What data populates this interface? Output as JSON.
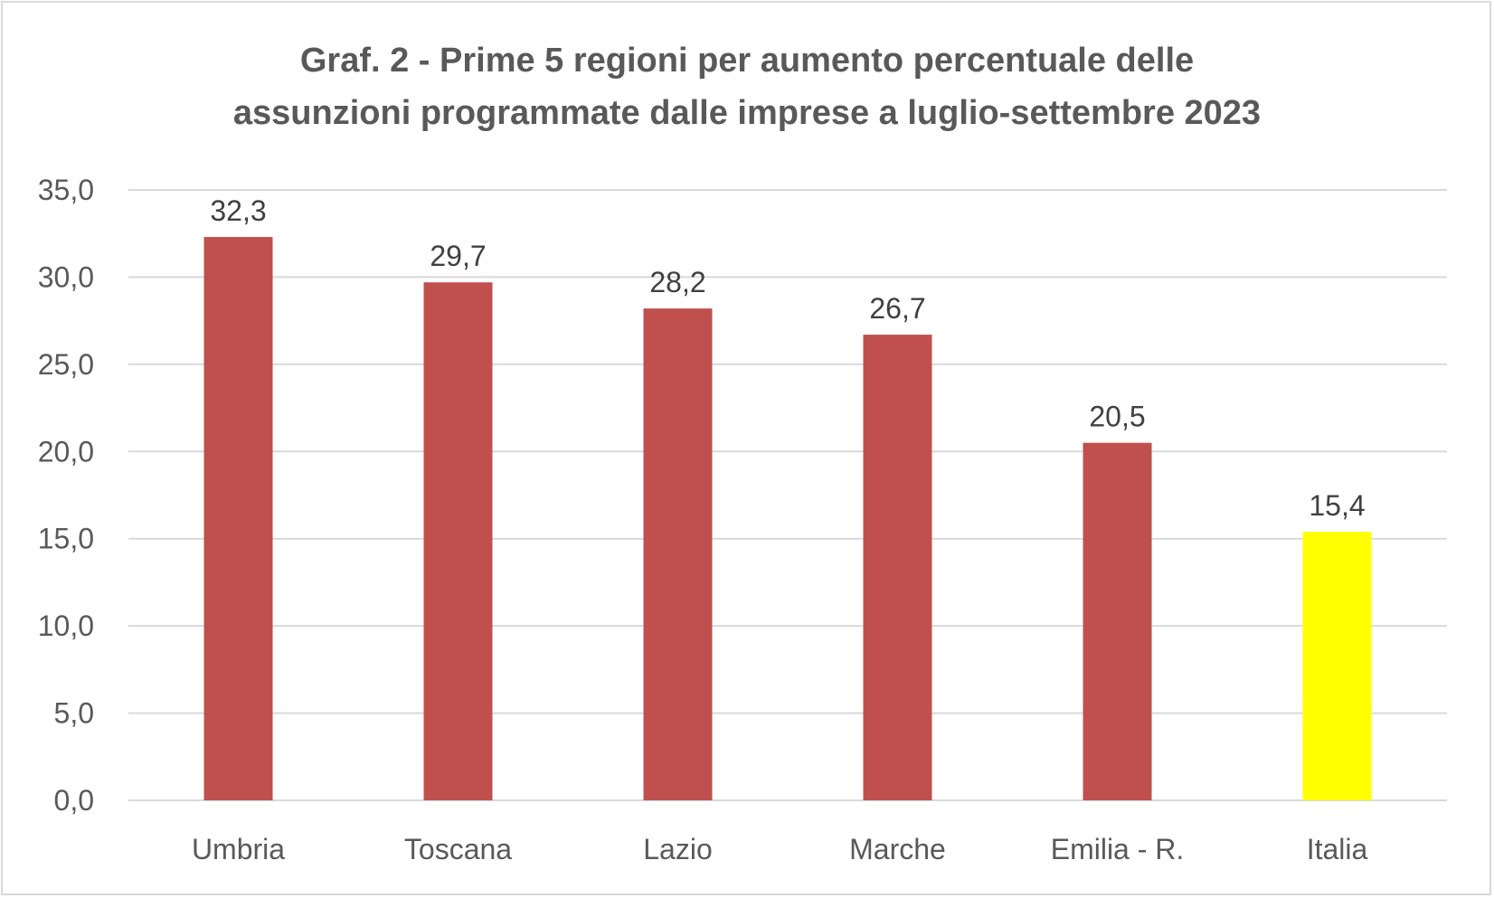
{
  "chart_data": {
    "type": "bar",
    "title": [
      "Graf. 2 - Prime 5 regioni per aumento percentuale delle",
      "assunzioni programmate dalle imprese a luglio-settembre 2023"
    ],
    "categories": [
      "Umbria",
      "Toscana",
      "Lazio",
      "Marche",
      "Emilia - R.",
      "Italia"
    ],
    "values": [
      32.3,
      29.7,
      28.2,
      26.7,
      20.5,
      15.4
    ],
    "value_labels": [
      "32,3",
      "29,7",
      "28,2",
      "26,7",
      "20,5",
      "15,4"
    ],
    "bar_colors": [
      "#C0504D",
      "#C0504D",
      "#C0504D",
      "#C0504D",
      "#C0504D",
      "#FFFF00"
    ],
    "ylim": [
      0,
      35
    ],
    "yticks": [
      0,
      5,
      10,
      15,
      20,
      25,
      30,
      35
    ],
    "ytick_labels": [
      "0,0",
      "5,0",
      "10,0",
      "15,0",
      "20,0",
      "25,0",
      "30,0",
      "35,0"
    ],
    "xlabel": "",
    "ylabel": "",
    "grid": true,
    "legend": "none"
  }
}
